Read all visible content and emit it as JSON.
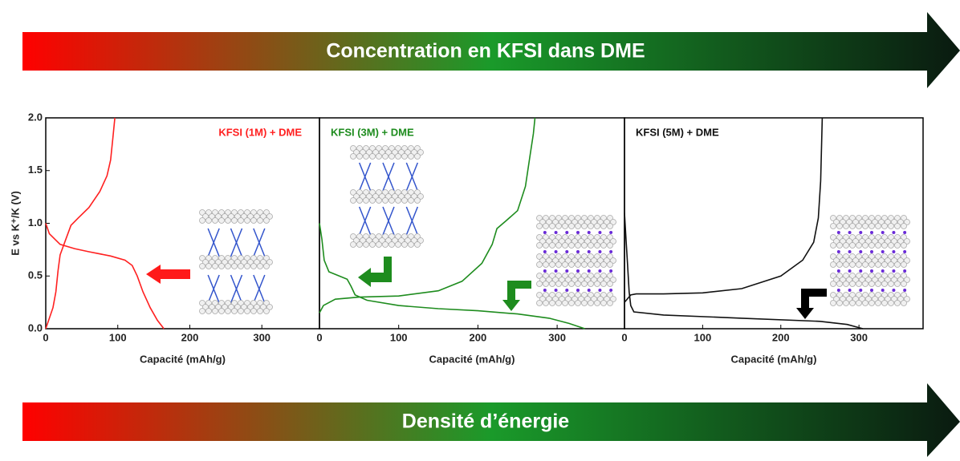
{
  "banners": [
    "Concentration en KFSI dans DME",
    "Densité d’énergie"
  ],
  "chart_data": [
    {
      "type": "line",
      "title": "KFSI (1M) + DME",
      "title_color": "#ff2020",
      "x_label": "Capacité (mAh/g)",
      "y_label": "E vs K⁺/K (V)",
      "xlim": [
        0,
        380
      ],
      "ylim": [
        0,
        2
      ],
      "xticks": [
        0,
        100,
        200,
        300
      ],
      "yticks": [
        {
          "value": 0,
          "label": "0.0"
        },
        0.5,
        {
          "value": 1,
          "label": "1.0"
        },
        1.5,
        {
          "value": 2,
          "label": "2.0"
        }
      ],
      "series": [
        {
          "color": "#ff2020",
          "x": [
            0,
            5,
            20,
            40,
            60,
            90,
            110,
            120,
            127,
            135,
            145,
            155,
            164
          ],
          "values": [
            1.0,
            0.9,
            0.8,
            0.76,
            0.73,
            0.69,
            0.65,
            0.6,
            0.5,
            0.35,
            0.2,
            0.08,
            0
          ]
        },
        {
          "color": "#ff2020",
          "x": [
            0,
            5,
            10,
            14,
            17,
            20,
            28,
            35,
            45,
            60,
            75,
            85,
            90,
            93,
            96
          ],
          "values": [
            0,
            0.1,
            0.2,
            0.35,
            0.55,
            0.7,
            0.85,
            0.98,
            1.05,
            1.15,
            1.3,
            1.45,
            1.6,
            1.8,
            2.0
          ]
        }
      ]
    },
    {
      "type": "line",
      "title": "KFSI (3M) + DME",
      "title_color": "#1e8c1e",
      "x_label": "Capacité (mAh/g)",
      "xlim": [
        0,
        385
      ],
      "ylim": [
        0,
        2
      ],
      "xticks": [
        0,
        100,
        200,
        300
      ],
      "series": [
        {
          "color": "#1e8c1e",
          "x": [
            0,
            3,
            6,
            12,
            25,
            35,
            40,
            45,
            60,
            100,
            150,
            200,
            250,
            290,
            315,
            335
          ],
          "values": [
            1.0,
            0.85,
            0.65,
            0.54,
            0.5,
            0.47,
            0.4,
            0.32,
            0.27,
            0.22,
            0.19,
            0.17,
            0.14,
            0.1,
            0.05,
            0
          ]
        },
        {
          "color": "#1e8c1e",
          "x": [
            0,
            5,
            20,
            50,
            100,
            150,
            180,
            205,
            218,
            224,
            235,
            250,
            260,
            266,
            270,
            272
          ],
          "values": [
            0.15,
            0.22,
            0.28,
            0.3,
            0.31,
            0.36,
            0.45,
            0.62,
            0.8,
            0.95,
            1.02,
            1.12,
            1.35,
            1.65,
            1.85,
            2.0
          ]
        }
      ]
    },
    {
      "type": "line",
      "title": "KFSI (5M) + DME",
      "title_color": "#111111",
      "x_label": "Capacité (mAh/g)",
      "xlim": [
        0,
        382
      ],
      "ylim": [
        0,
        2
      ],
      "xticks": [
        0,
        100,
        200,
        300
      ],
      "series": [
        {
          "color": "#111111",
          "x": [
            0,
            2,
            4,
            6,
            8,
            12,
            50,
            150,
            250,
            285,
            305
          ],
          "values": [
            1.1,
            0.85,
            0.6,
            0.35,
            0.22,
            0.16,
            0.13,
            0.1,
            0.07,
            0.04,
            0
          ]
        },
        {
          "color": "#111111",
          "x": [
            0,
            8,
            15,
            50,
            100,
            150,
            200,
            228,
            242,
            248,
            251,
            252,
            253
          ],
          "values": [
            0.25,
            0.32,
            0.33,
            0.33,
            0.34,
            0.38,
            0.5,
            0.65,
            0.82,
            1.05,
            1.4,
            1.7,
            2.0
          ]
        }
      ]
    }
  ]
}
